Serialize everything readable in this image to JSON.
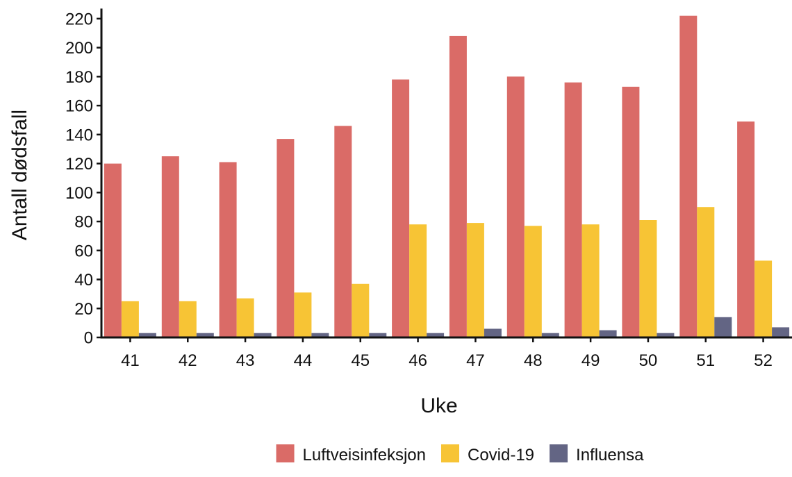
{
  "chart_data": {
    "type": "bar",
    "title": "",
    "xlabel": "Uke",
    "ylabel": "Antall dødsfall",
    "categories": [
      "41",
      "42",
      "43",
      "44",
      "45",
      "46",
      "47",
      "48",
      "49",
      "50",
      "51",
      "52"
    ],
    "ylim": [
      0,
      225
    ],
    "yticks": [
      "0",
      "20",
      "40",
      "60",
      "80",
      "100",
      "120",
      "140",
      "160",
      "180",
      "200",
      "220"
    ],
    "grid": false,
    "legend_position": "bottom",
    "series": [
      {
        "name": "Luftveisinfeksjon",
        "color": "#DA6B67",
        "values": [
          120,
          125,
          121,
          137,
          146,
          178,
          208,
          180,
          176,
          173,
          222,
          149
        ]
      },
      {
        "name": "Covid-19",
        "color": "#F7C435",
        "values": [
          25,
          25,
          27,
          31,
          37,
          78,
          79,
          77,
          78,
          81,
          90,
          53
        ]
      },
      {
        "name": "Influensa",
        "color": "#636584",
        "values": [
          3,
          3,
          3,
          3,
          3,
          3,
          6,
          3,
          5,
          3,
          14,
          7
        ]
      }
    ]
  }
}
